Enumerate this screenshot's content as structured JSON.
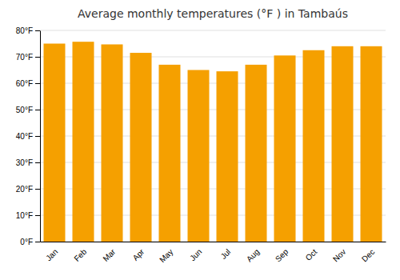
{
  "chart_data": {
    "type": "bar",
    "title": "Average monthly temperatures (°F ) in Tambaús",
    "categories": [
      "Jan",
      "Feb",
      "Mar",
      "Apr",
      "May",
      "Jun",
      "Jul",
      "Aug",
      "Sep",
      "Oct",
      "Nov",
      "Dec"
    ],
    "values": [
      75.0,
      75.7,
      74.7,
      71.5,
      67.0,
      65.0,
      64.5,
      67.0,
      70.5,
      72.5,
      74.0,
      74.0
    ],
    "color": "#F5A000",
    "ylim": [
      0,
      80
    ],
    "yticks": [
      {
        "value": 0,
        "label": "0°F"
      },
      {
        "value": 10,
        "label": "10°F"
      },
      {
        "value": 20,
        "label": "20°F"
      },
      {
        "value": 30,
        "label": "30°F"
      },
      {
        "value": 40,
        "label": "40°F"
      },
      {
        "value": 50,
        "label": "50°F"
      },
      {
        "value": 60,
        "label": "60°F"
      },
      {
        "value": 70,
        "label": "70°F"
      },
      {
        "value": 80,
        "label": "80°F"
      }
    ],
    "grid": true
  }
}
